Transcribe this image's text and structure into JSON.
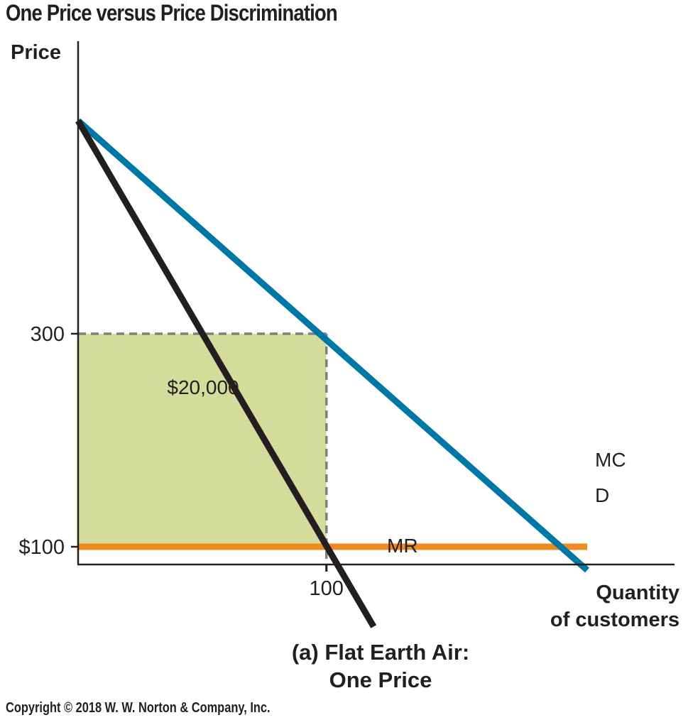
{
  "title": "One Price versus Price Discrimination",
  "footer": "Copyright © 2018 W. W. Norton & Company, Inc.",
  "colors": {
    "demand": "#0078a6",
    "marginal_revenue": "#231f20",
    "marginal_cost": "#f2891f",
    "profit_area": "#d4dc9c",
    "guides": "#808080"
  },
  "chart_data": {
    "type": "line",
    "caption": [
      "(a) Flat Earth Air:",
      "One Price"
    ],
    "ylabel": "Price",
    "xlabel": [
      "Quantity",
      "of customers"
    ],
    "xlim": [
      0,
      205
    ],
    "ylim": [
      0,
      500
    ],
    "x_ticks": [
      {
        "value": 100,
        "label": "100"
      }
    ],
    "y_ticks": [
      {
        "value": 300,
        "label": "300"
      },
      {
        "value": 100,
        "label": "$100"
      }
    ],
    "series": [
      {
        "name": "D",
        "key": "demand",
        "points": [
          [
            0,
            500
          ],
          [
            205,
            78
          ]
        ]
      },
      {
        "name": "MR",
        "key": "marginal_revenue",
        "points": [
          [
            0,
            500
          ],
          [
            119,
            25
          ]
        ]
      },
      {
        "name": "MC",
        "key": "marginal_cost",
        "points": [
          [
            0,
            100
          ],
          [
            205,
            100
          ]
        ]
      }
    ],
    "shaded_region": {
      "label": "$20,000",
      "x": [
        0,
        100
      ],
      "y": [
        100,
        300
      ]
    },
    "guides": [
      {
        "from": [
          0,
          300
        ],
        "to": [
          100,
          300
        ]
      },
      {
        "from": [
          100,
          300
        ],
        "to": [
          100,
          0
        ]
      }
    ],
    "grid": false,
    "legend": "none"
  }
}
